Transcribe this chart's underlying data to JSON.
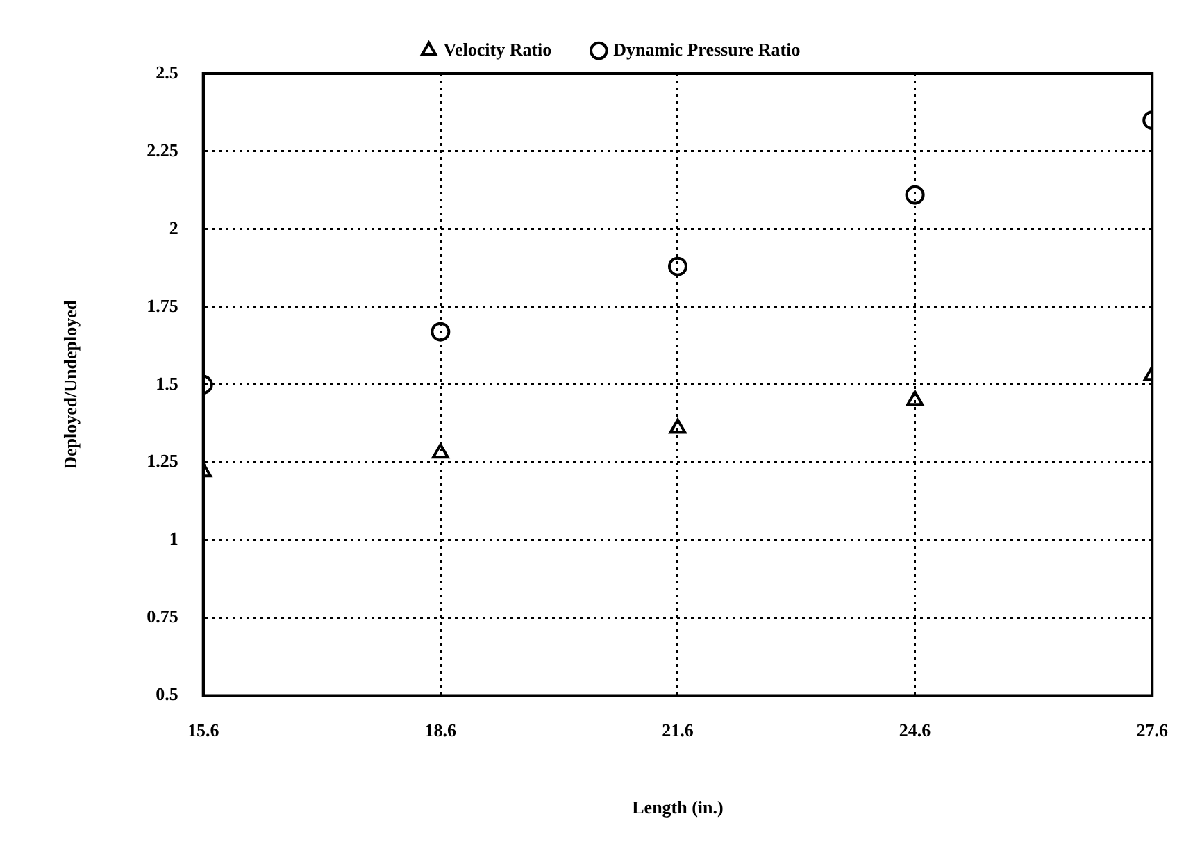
{
  "chart_data": {
    "type": "scatter",
    "xlabel": "Length (in.)",
    "ylabel": "Deployed/Undeployed",
    "x": [
      15.6,
      18.6,
      21.6,
      24.6,
      27.6
    ],
    "xlim": [
      15.6,
      27.6
    ],
    "xticks": [
      15.6,
      18.6,
      21.6,
      24.6,
      27.6
    ],
    "ylim": [
      0.5,
      2.5
    ],
    "yticks": [
      0.5,
      0.75,
      1,
      1.25,
      1.5,
      1.75,
      2,
      2.25,
      2.5
    ],
    "grid": true,
    "legend": "top",
    "series": [
      {
        "name": "Velocity Ratio",
        "color": "#000000",
        "marker": "triangle",
        "values": [
          1.22,
          1.28,
          1.36,
          1.45,
          1.53
        ]
      },
      {
        "name": "Dynamic Pressure Ratio",
        "color": "#000000",
        "marker": "circle",
        "values": [
          1.5,
          1.67,
          1.88,
          2.11,
          2.35
        ]
      }
    ]
  }
}
